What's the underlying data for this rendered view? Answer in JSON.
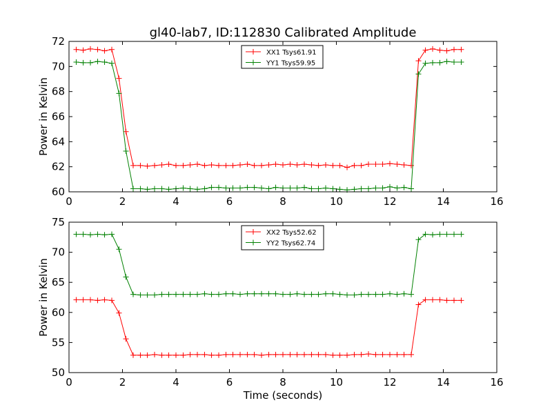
{
  "figure": {
    "title": "gl40-lab7, ID:112830 Calibrated Amplitude"
  },
  "chart_data": [
    {
      "type": "line",
      "title": "gl40-lab7, ID:112830 Calibrated Amplitude",
      "xlabel": "",
      "ylabel": "Power in Kelvin",
      "xlim": [
        0,
        16
      ],
      "ylim": [
        60,
        72
      ],
      "xticks": [
        "0",
        "2",
        "4",
        "6",
        "8",
        "10",
        "12",
        "14",
        "16"
      ],
      "yticks": [
        "60",
        "62",
        "64",
        "66",
        "68",
        "70",
        "72"
      ],
      "grid": false,
      "legend_position": "top-center",
      "x": [
        0.27,
        0.53,
        0.8,
        1.07,
        1.33,
        1.6,
        1.87,
        2.13,
        2.4,
        2.67,
        2.93,
        3.2,
        3.47,
        3.73,
        4.0,
        4.27,
        4.53,
        4.8,
        5.07,
        5.33,
        5.6,
        5.87,
        6.13,
        6.4,
        6.67,
        6.93,
        7.2,
        7.47,
        7.73,
        8.0,
        8.27,
        8.53,
        8.8,
        9.07,
        9.33,
        9.6,
        9.87,
        10.13,
        10.4,
        10.67,
        10.93,
        11.2,
        11.47,
        11.73,
        12.0,
        12.27,
        12.53,
        12.8,
        13.07,
        13.33,
        13.6,
        13.87,
        14.13,
        14.4,
        14.67
      ],
      "series": [
        {
          "name": "XX1 Tsys61.91",
          "color": "#ff0000",
          "values": [
            71.35,
            71.3,
            71.4,
            71.35,
            71.25,
            71.35,
            69.05,
            64.8,
            62.1,
            62.1,
            62.05,
            62.1,
            62.15,
            62.2,
            62.1,
            62.1,
            62.15,
            62.2,
            62.1,
            62.15,
            62.1,
            62.1,
            62.1,
            62.15,
            62.2,
            62.1,
            62.1,
            62.15,
            62.2,
            62.15,
            62.2,
            62.15,
            62.2,
            62.15,
            62.1,
            62.15,
            62.1,
            62.1,
            61.95,
            62.1,
            62.1,
            62.2,
            62.2,
            62.2,
            62.25,
            62.2,
            62.15,
            62.1,
            70.45,
            71.3,
            71.4,
            71.3,
            71.25,
            71.35,
            71.35
          ]
        },
        {
          "name": "YY1 Tsys59.95",
          "color": "#008000",
          "values": [
            70.35,
            70.3,
            70.3,
            70.4,
            70.35,
            70.25,
            67.85,
            63.25,
            60.25,
            60.25,
            60.2,
            60.25,
            60.25,
            60.2,
            60.25,
            60.3,
            60.25,
            60.2,
            60.25,
            60.35,
            60.35,
            60.3,
            60.3,
            60.3,
            60.35,
            60.35,
            60.3,
            60.25,
            60.35,
            60.3,
            60.3,
            60.3,
            60.35,
            60.25,
            60.25,
            60.3,
            60.25,
            60.2,
            60.15,
            60.2,
            60.25,
            60.25,
            60.3,
            60.3,
            60.4,
            60.3,
            60.35,
            60.25,
            69.4,
            70.25,
            70.3,
            70.3,
            70.4,
            70.35,
            70.35
          ]
        }
      ]
    },
    {
      "type": "line",
      "title": "",
      "xlabel": "Time (seconds)",
      "ylabel": "Power in Kelvin",
      "xlim": [
        0,
        16
      ],
      "ylim": [
        50,
        75
      ],
      "xticks": [
        "0",
        "2",
        "4",
        "6",
        "8",
        "10",
        "12",
        "14",
        "16"
      ],
      "yticks": [
        "50",
        "55",
        "60",
        "65",
        "70",
        "75"
      ],
      "grid": false,
      "legend_position": "top-center",
      "x": [
        0.27,
        0.53,
        0.8,
        1.07,
        1.33,
        1.6,
        1.87,
        2.13,
        2.4,
        2.67,
        2.93,
        3.2,
        3.47,
        3.73,
        4.0,
        4.27,
        4.53,
        4.8,
        5.07,
        5.33,
        5.6,
        5.87,
        6.13,
        6.4,
        6.67,
        6.93,
        7.2,
        7.47,
        7.73,
        8.0,
        8.27,
        8.53,
        8.8,
        9.07,
        9.33,
        9.6,
        9.87,
        10.13,
        10.4,
        10.67,
        10.93,
        11.2,
        11.47,
        11.73,
        12.0,
        12.27,
        12.53,
        12.8,
        13.07,
        13.33,
        13.6,
        13.87,
        14.13,
        14.4,
        14.67
      ],
      "series": [
        {
          "name": "XX2 Tsys52.62",
          "color": "#ff0000",
          "values": [
            62.1,
            62.1,
            62.1,
            62.0,
            62.1,
            62.0,
            59.9,
            55.6,
            52.9,
            52.9,
            52.9,
            53.0,
            52.9,
            52.9,
            52.9,
            52.9,
            53.0,
            53.0,
            53.0,
            52.9,
            52.9,
            53.0,
            53.0,
            53.0,
            53.0,
            53.0,
            52.9,
            53.0,
            53.0,
            53.0,
            53.0,
            53.0,
            53.0,
            53.0,
            53.0,
            53.0,
            52.9,
            52.9,
            52.9,
            53.0,
            53.0,
            53.1,
            53.0,
            53.0,
            53.0,
            53.0,
            53.0,
            53.0,
            61.3,
            62.1,
            62.1,
            62.1,
            62.0,
            62.0,
            62.0
          ]
        },
        {
          "name": "YY2 Tsys62.74",
          "color": "#008000",
          "values": [
            73.0,
            73.0,
            72.9,
            73.0,
            72.9,
            73.0,
            70.5,
            65.9,
            63.0,
            62.9,
            62.9,
            62.9,
            63.0,
            63.0,
            63.0,
            63.0,
            63.0,
            63.0,
            63.1,
            63.0,
            63.0,
            63.1,
            63.1,
            63.0,
            63.1,
            63.1,
            63.1,
            63.1,
            63.1,
            63.0,
            63.0,
            63.1,
            63.0,
            63.0,
            63.0,
            63.1,
            63.1,
            63.0,
            62.9,
            62.9,
            63.0,
            63.0,
            63.0,
            63.0,
            63.1,
            63.0,
            63.1,
            63.0,
            72.1,
            73.0,
            72.9,
            73.0,
            73.0,
            73.0,
            73.0
          ]
        }
      ]
    }
  ]
}
